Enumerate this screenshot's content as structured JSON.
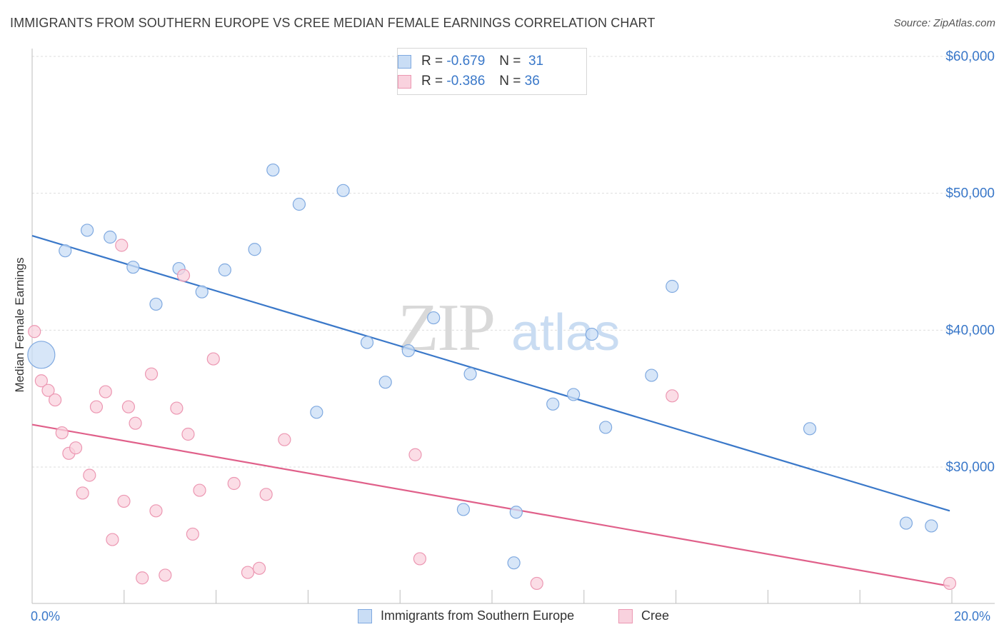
{
  "title": "IMMIGRANTS FROM SOUTHERN EUROPE VS CREE MEDIAN FEMALE EARNINGS CORRELATION CHART",
  "source": "Source: ZipAtlas.com",
  "watermark": {
    "zip": "ZIP",
    "atlas": "atlas"
  },
  "legend": {
    "rows": [
      {
        "r_label": "R =",
        "r_value": "-0.679",
        "n_label": "N =",
        "n_value": "31",
        "color": "#a8c8f0",
        "border": "#6a9fe0"
      },
      {
        "r_label": "R =",
        "r_value": "-0.386",
        "n_label": "N =",
        "n_value": "36",
        "color": "#f8c4d4",
        "border": "#e890aa"
      }
    ]
  },
  "bottom_legend": [
    "Immigrants from Southern Europe",
    "Cree"
  ],
  "colors": {
    "blue": "#3a78c9",
    "blue_fill": "#c9ddf5",
    "blue_stroke": "#7fa9e0",
    "pink": "#e0608a",
    "pink_fill": "#f9d2de",
    "pink_stroke": "#ec97b2",
    "tick_text": "#3a78c9"
  },
  "chart_data": {
    "type": "scatter",
    "ylabel": "Median Female Earnings",
    "x_tick_labels": [
      "0.0%",
      "20.0%"
    ],
    "xlim": [
      0,
      20
    ],
    "ylim": [
      20000,
      62000
    ],
    "y_ticks": [
      30000,
      40000,
      50000,
      60000
    ],
    "y_tick_labels": [
      "$30,000",
      "$40,000",
      "$50,000",
      "$60,000"
    ],
    "grid": true,
    "series": [
      {
        "name": "Immigrants from Southern Europe",
        "r": -0.679,
        "n": 31,
        "trend": {
          "x": [
            0,
            20
          ],
          "y": [
            46900,
            26800
          ]
        },
        "points": [
          {
            "x": 0.2,
            "y": 38200,
            "big": true
          },
          {
            "x": 0.72,
            "y": 45800
          },
          {
            "x": 1.2,
            "y": 47300
          },
          {
            "x": 1.7,
            "y": 46800
          },
          {
            "x": 2.2,
            "y": 44600
          },
          {
            "x": 2.7,
            "y": 41900
          },
          {
            "x": 3.2,
            "y": 44500
          },
          {
            "x": 3.7,
            "y": 42800
          },
          {
            "x": 4.2,
            "y": 44400
          },
          {
            "x": 4.85,
            "y": 45900
          },
          {
            "x": 5.25,
            "y": 51700
          },
          {
            "x": 5.82,
            "y": 49200
          },
          {
            "x": 6.2,
            "y": 34000
          },
          {
            "x": 6.78,
            "y": 50200
          },
          {
            "x": 7.3,
            "y": 39100
          },
          {
            "x": 7.7,
            "y": 36200
          },
          {
            "x": 8.2,
            "y": 38500
          },
          {
            "x": 8.75,
            "y": 40900
          },
          {
            "x": 9.4,
            "y": 26900
          },
          {
            "x": 9.55,
            "y": 36800
          },
          {
            "x": 10.55,
            "y": 26700
          },
          {
            "x": 10.5,
            "y": 23000
          },
          {
            "x": 11.35,
            "y": 34600
          },
          {
            "x": 11.8,
            "y": 35300
          },
          {
            "x": 12.5,
            "y": 32900
          },
          {
            "x": 12.2,
            "y": 39700
          },
          {
            "x": 13.5,
            "y": 36700
          },
          {
            "x": 13.95,
            "y": 43200
          },
          {
            "x": 16.95,
            "y": 32800
          },
          {
            "x": 19.05,
            "y": 25900
          },
          {
            "x": 19.6,
            "y": 25700
          }
        ]
      },
      {
        "name": "Cree",
        "r": -0.386,
        "n": 36,
        "trend": {
          "x": [
            0,
            20
          ],
          "y": [
            33100,
            21300
          ]
        },
        "points": [
          {
            "x": 0.05,
            "y": 39900
          },
          {
            "x": 0.2,
            "y": 36300
          },
          {
            "x": 0.35,
            "y": 35600
          },
          {
            "x": 0.5,
            "y": 34900
          },
          {
            "x": 0.65,
            "y": 32500
          },
          {
            "x": 0.8,
            "y": 31000
          },
          {
            "x": 0.95,
            "y": 31400
          },
          {
            "x": 1.1,
            "y": 28100
          },
          {
            "x": 1.25,
            "y": 29400
          },
          {
            "x": 1.4,
            "y": 34400
          },
          {
            "x": 1.6,
            "y": 35500
          },
          {
            "x": 1.75,
            "y": 24700
          },
          {
            "x": 1.95,
            "y": 46200
          },
          {
            "x": 2.0,
            "y": 27500
          },
          {
            "x": 2.1,
            "y": 34400
          },
          {
            "x": 2.25,
            "y": 33200
          },
          {
            "x": 2.4,
            "y": 21900
          },
          {
            "x": 2.6,
            "y": 36800
          },
          {
            "x": 2.7,
            "y": 26800
          },
          {
            "x": 2.9,
            "y": 22100
          },
          {
            "x": 3.15,
            "y": 34300
          },
          {
            "x": 3.3,
            "y": 44000
          },
          {
            "x": 3.4,
            "y": 32400
          },
          {
            "x": 3.5,
            "y": 25100
          },
          {
            "x": 3.65,
            "y": 28300
          },
          {
            "x": 3.95,
            "y": 37900
          },
          {
            "x": 4.4,
            "y": 28800
          },
          {
            "x": 4.7,
            "y": 22300
          },
          {
            "x": 4.95,
            "y": 22600
          },
          {
            "x": 5.1,
            "y": 28000
          },
          {
            "x": 5.5,
            "y": 32000
          },
          {
            "x": 8.35,
            "y": 30900
          },
          {
            "x": 8.45,
            "y": 23300
          },
          {
            "x": 11.0,
            "y": 21500
          },
          {
            "x": 13.95,
            "y": 35200
          },
          {
            "x": 20.0,
            "y": 21500
          }
        ]
      }
    ]
  }
}
